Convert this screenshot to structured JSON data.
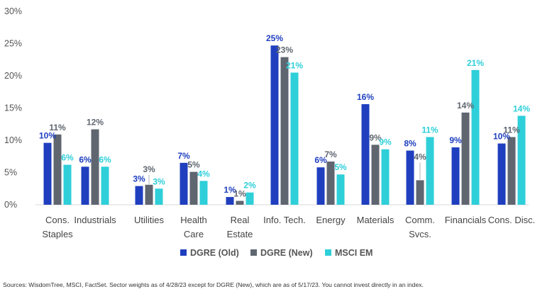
{
  "chart_data": {
    "type": "bar",
    "categories": [
      [
        "Cons.",
        "Staples"
      ],
      [
        "Industrials"
      ],
      [
        "Utilities"
      ],
      [
        "Health",
        "Care"
      ],
      [
        "Real",
        "Estate"
      ],
      [
        "Info. Tech."
      ],
      [
        "Energy"
      ],
      [
        "Materials"
      ],
      [
        "Comm.",
        "Svcs."
      ],
      [
        "Financials"
      ],
      [
        "Cons. Disc."
      ]
    ],
    "series": [
      {
        "name": "DGRE (Old)",
        "color": "#1f3fbf",
        "values": [
          9.6,
          5.9,
          2.9,
          6.5,
          1.2,
          24.7,
          5.8,
          15.6,
          8.4,
          8.9,
          9.5
        ]
      },
      {
        "name": "DGRE (New)",
        "color": "#5f6670",
        "values": [
          10.9,
          11.7,
          3.1,
          5.1,
          0.6,
          22.9,
          6.7,
          9.3,
          3.8,
          14.3,
          10.5
        ]
      },
      {
        "name": "MSCI EM",
        "color": "#2ecfd9",
        "values": [
          6.2,
          5.9,
          2.5,
          3.7,
          1.9,
          20.5,
          4.7,
          8.6,
          10.5,
          20.9,
          13.8
        ]
      }
    ],
    "data_labels": [
      [
        "10%",
        "6%",
        "3%",
        "7%",
        "1%",
        "25%",
        "6%",
        "16%",
        "8%",
        "9%",
        "10%"
      ],
      [
        "11%",
        "12%",
        "3%",
        "5%",
        "1%",
        "23%",
        "7%",
        "9%",
        "4%",
        "14%",
        "11%"
      ],
      [
        "6%",
        "6%",
        "3%",
        "4%",
        "2%",
        "21%",
        "5%",
        "9%",
        "11%",
        "21%",
        "14%"
      ]
    ],
    "y_ticks": [
      "0%",
      "5%",
      "10%",
      "15%",
      "20%",
      "25%",
      "30%"
    ],
    "ylim": [
      0,
      30
    ],
    "grid": false,
    "legend_position": "bottom"
  },
  "footnote": "Sources: WisdomTree, MSCI, FactSet. Sector weights as of 4/28/23 except for DGRE (New), which are as of 5/17/23. You cannot invest directly in an index."
}
